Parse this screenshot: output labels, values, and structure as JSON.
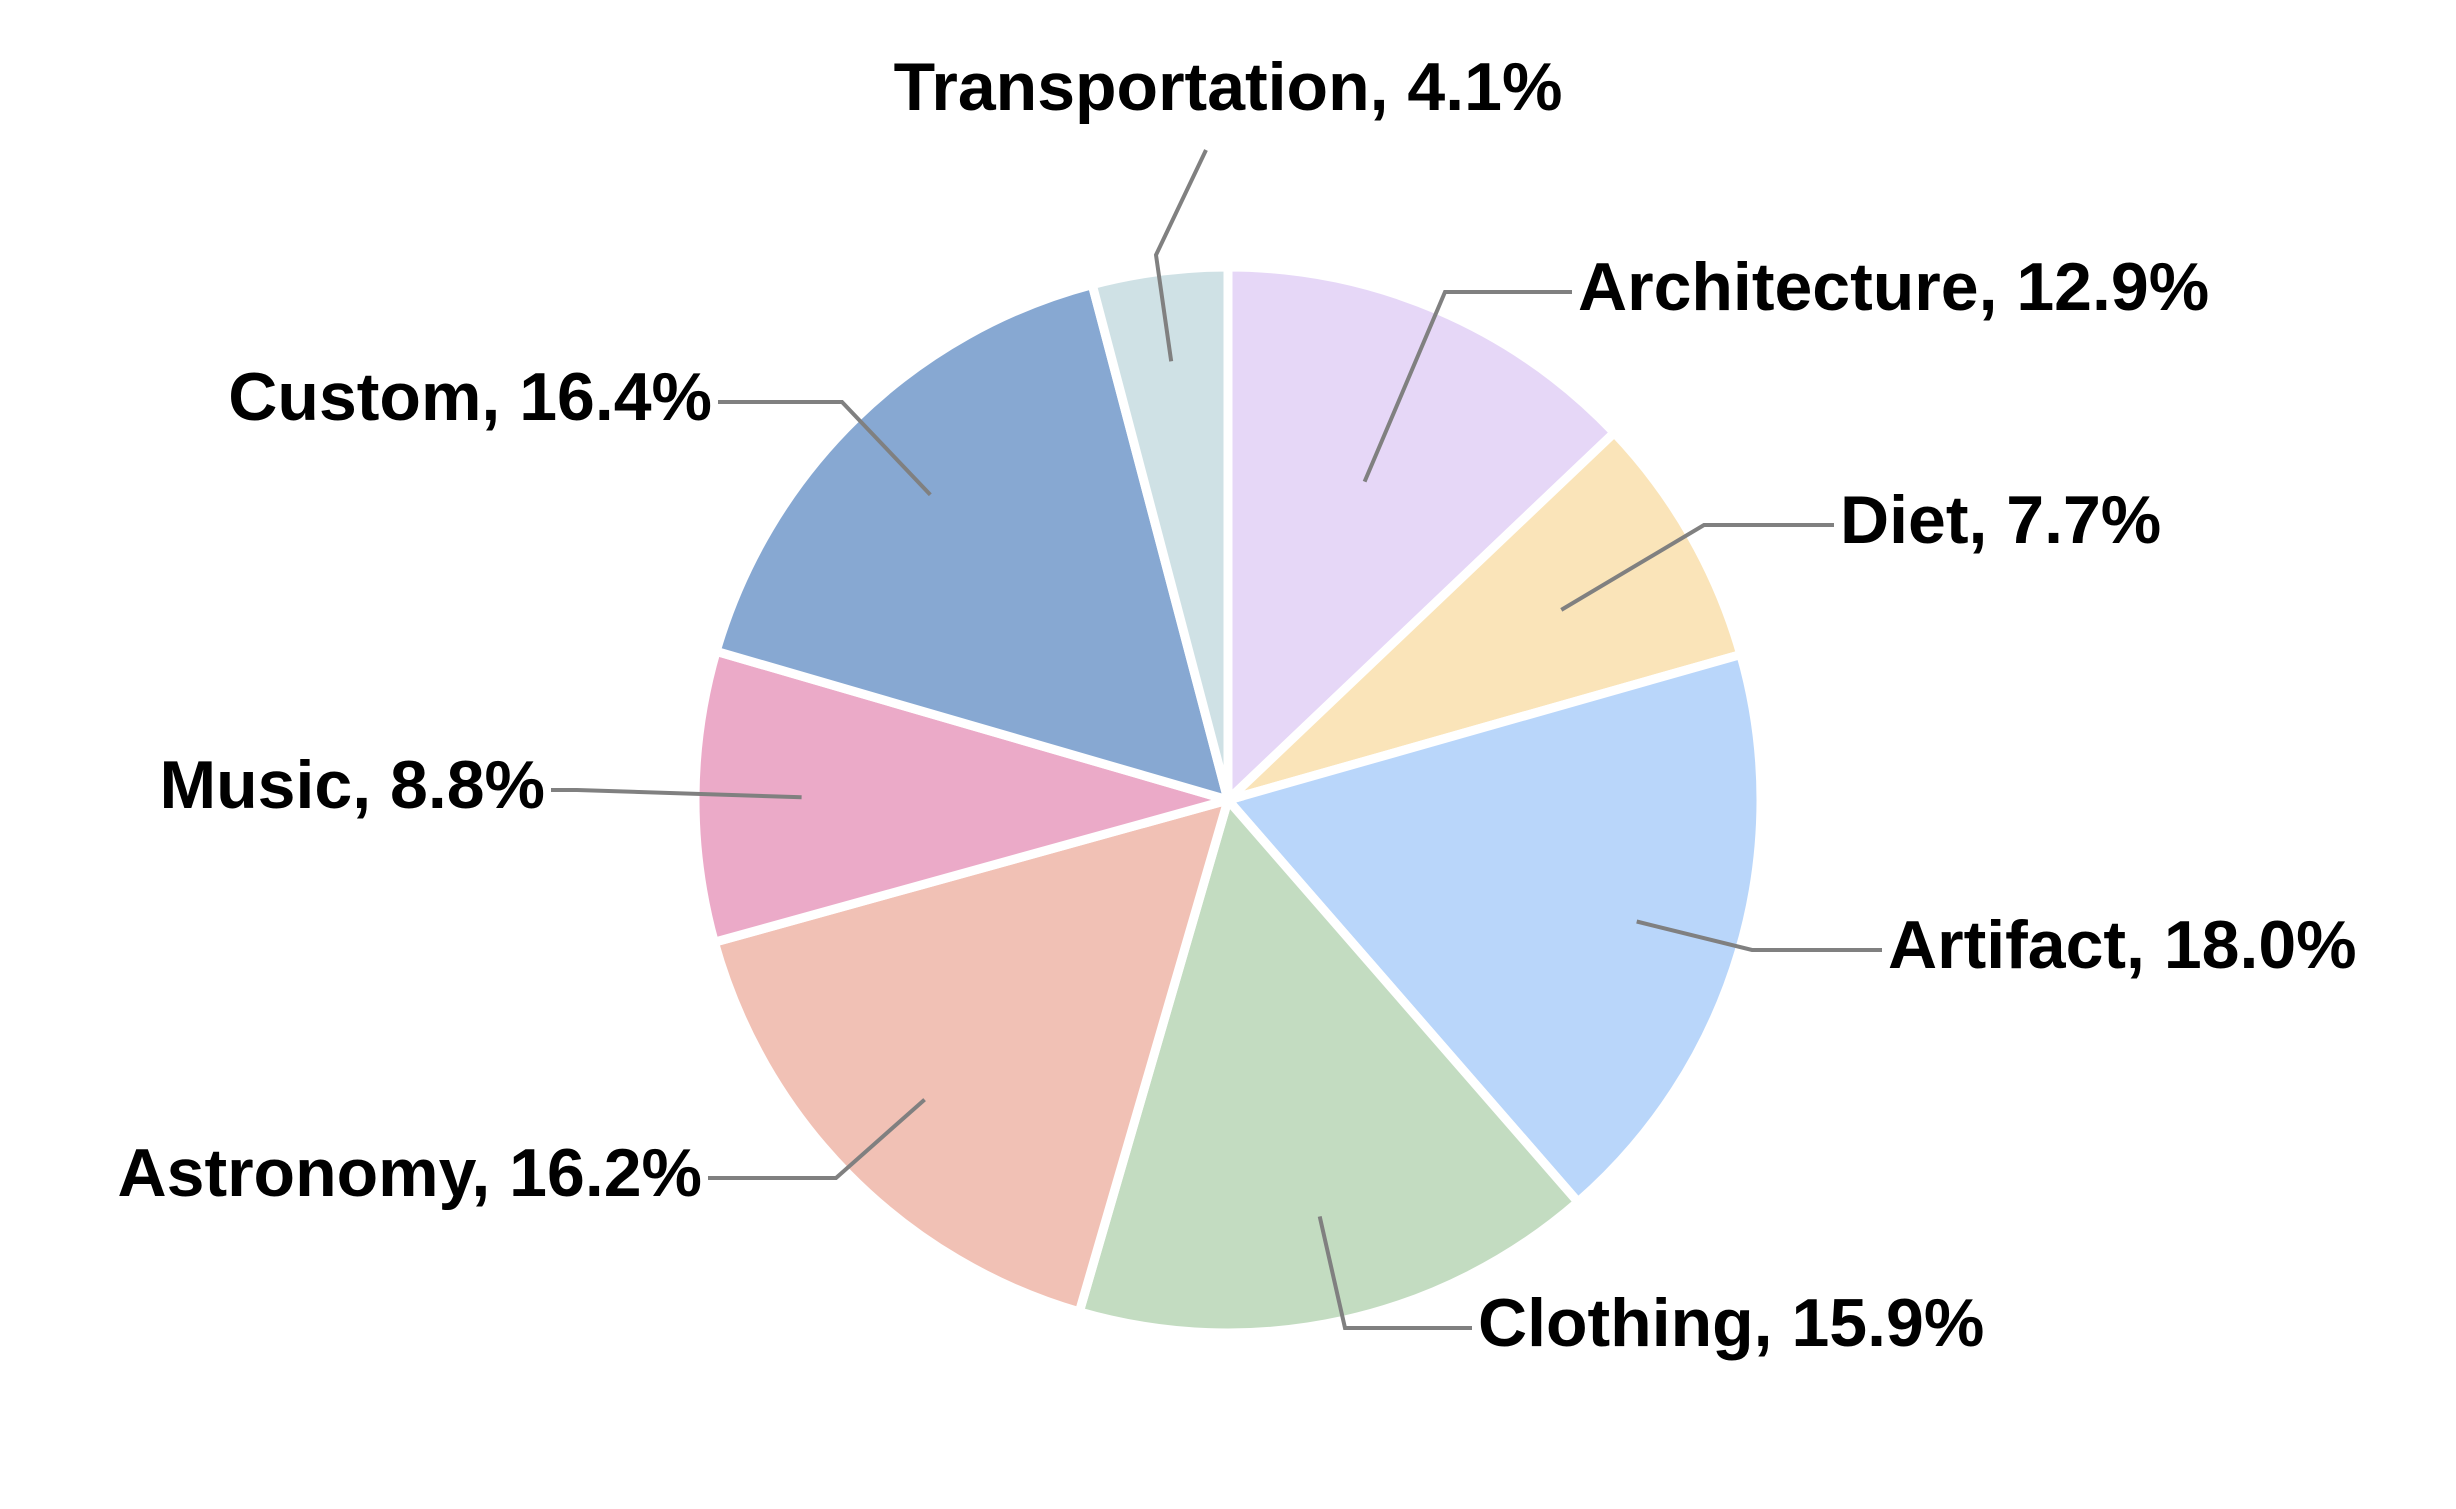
{
  "chart_data": {
    "type": "pie",
    "title": "",
    "start_angle_deg": 90,
    "direction": "clockwise",
    "slices": [
      {
        "label": "Architecture",
        "value": 12.9,
        "display": "Architecture, 12.9%",
        "color": "#E6D7F7"
      },
      {
        "label": "Diet",
        "value": 7.7,
        "display": "Diet, 7.7%",
        "color": "#FAE4B9"
      },
      {
        "label": "Artifact",
        "value": 18.0,
        "display": "Artifact, 18.0%",
        "color": "#B9D6FA"
      },
      {
        "label": "Clothing",
        "value": 15.9,
        "display": "Clothing, 15.9%",
        "color": "#C3DCC1"
      },
      {
        "label": "Astronomy",
        "value": 16.2,
        "display": "Astronomy, 16.2%",
        "color": "#F1C1B5"
      },
      {
        "label": "Music",
        "value": 8.8,
        "display": "Music, 8.8%",
        "color": "#EBAAC8"
      },
      {
        "label": "Custom",
        "value": 16.4,
        "display": "Custom, 16.4%",
        "color": "#87A8D2"
      },
      {
        "label": "Transportation",
        "value": 4.1,
        "display": "Transportation, 4.1%",
        "color": "#CFE1E5"
      }
    ]
  }
}
